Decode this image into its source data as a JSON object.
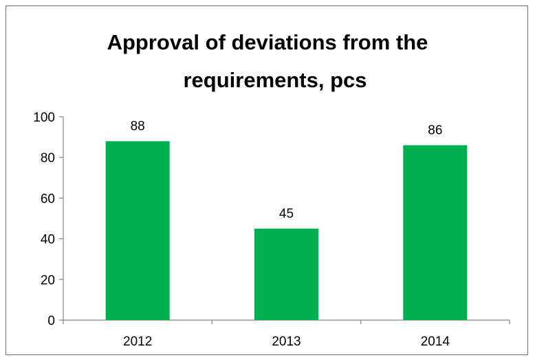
{
  "chart_data": {
    "type": "bar",
    "title_lines": [
      "Approval of deviations from the",
      "requirements, pcs"
    ],
    "categories": [
      "2012",
      "2013",
      "2014"
    ],
    "values": [
      88,
      45,
      86
    ],
    "data_labels": [
      "88",
      "45",
      "86"
    ],
    "ylim": [
      0,
      100
    ],
    "yticks": [
      "0",
      "20",
      "40",
      "60",
      "80",
      "100"
    ],
    "xlabel": "",
    "ylabel": "",
    "grid": false,
    "legend": "none",
    "bar_color": "#00b050"
  }
}
